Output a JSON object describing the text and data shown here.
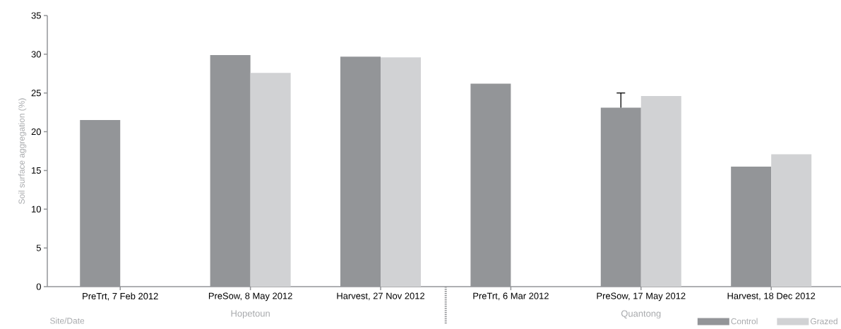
{
  "chart_data": {
    "type": "bar",
    "xlabel": "Site/Date",
    "ylabel": "Soil surface aggregation (%)",
    "categories": [
      "PreTrt, 7 Feb 2012",
      "PreSow, 8 May 2012",
      "Harvest, 27 Nov 2012",
      "PreTrt, 6 Mar 2012",
      "PreSow, 17 May 2012",
      "Harvest, 18 Dec 2012"
    ],
    "series": [
      {
        "name": "Control",
        "color": "#939598",
        "values": [
          21.5,
          29.9,
          29.7,
          26.2,
          23.1,
          15.5
        ],
        "errors": [
          null,
          null,
          null,
          null,
          [
            23.1,
            25.0
          ],
          null
        ]
      },
      {
        "name": "Grazed",
        "color": "#d1d2d4",
        "values": [
          null,
          27.6,
          29.6,
          null,
          24.6,
          17.1
        ]
      }
    ],
    "annotations": [
      "Hopetoun",
      "Quantong"
    ],
    "ylim": [
      0,
      35
    ],
    "yticks": [
      0,
      5,
      10,
      15,
      20,
      25,
      30,
      35
    ],
    "grid": false,
    "legend": "bottom right"
  }
}
